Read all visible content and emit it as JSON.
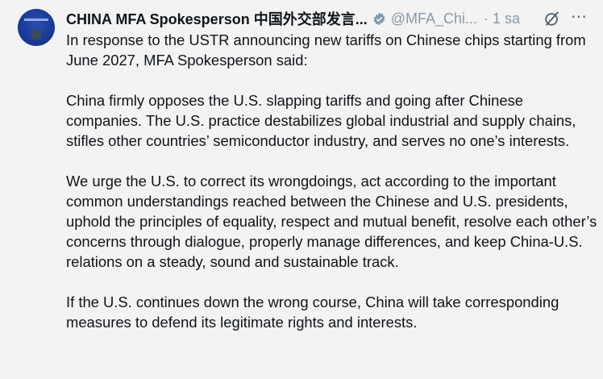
{
  "tweet": {
    "author_name": "CHINA MFA Spokesperson 中国外交部发言...",
    "handle": "@MFA_Chi...",
    "time": "· 1 sa",
    "verified_color": "#829aab",
    "paragraphs": [
      "In response to the USTR announcing new tariffs on Chinese chips starting from June 2027, MFA Spokesperson said:",
      "China firmly opposes the U.S. slapping tariffs and going after Chinese companies. The U.S. practice destabilizes global industrial and supply chains, stifles other countries’ semiconductor industry, and serves no one’s interests.",
      "We urge the U.S. to correct its wrongdoings, act according to the important common understandings reached between the Chinese and U.S. presidents, uphold the principles of equality, respect and mutual benefit, resolve each other’s concerns through dialogue, properly manage differences, and keep China-U.S. relations on a steady, sound and sustainable track.",
      "If the U.S. continues down the wrong course, China will take corresponding measures to defend its legitimate rights and interests."
    ],
    "more_icon": "⋯"
  }
}
